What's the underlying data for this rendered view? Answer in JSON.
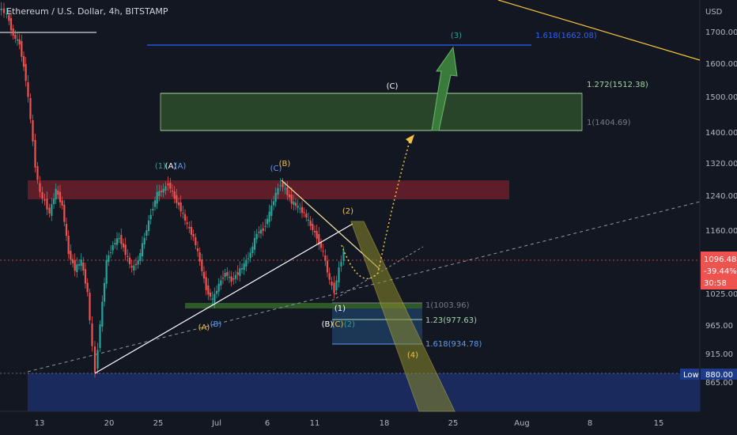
{
  "chart_data": {
    "type": "candlestick",
    "title": "Ethereum / U.S. Dollar, 4h, BITSTAMP",
    "currency_label": "USD",
    "y_axis_ticks": [
      "1700.00",
      "1600.00",
      "1500.00",
      "1400.00",
      "1320.00",
      "1240.00",
      "1160.00",
      "1025.00",
      "965.00",
      "915.00",
      "865.00"
    ],
    "x_axis_ticks": [
      "13",
      "20",
      "25",
      "Jul",
      "6",
      "11",
      "18",
      "25",
      "Aug",
      "8",
      "15"
    ],
    "current_price": {
      "value": "1096.48",
      "change": "-39.44%",
      "countdown": "30:58"
    },
    "low_marker": {
      "label": "Low",
      "value": "880.00"
    },
    "fib_levels": [
      {
        "label": "1.618(1662.08)",
        "color": "#2962ff"
      },
      {
        "label": "1.272(1512.38)",
        "color": "#a5d6a7"
      },
      {
        "label": "1(1404.69)",
        "color": "#787b86"
      },
      {
        "label": "1(1003.96)",
        "color": "#787b86"
      },
      {
        "label": "1.23(977.63)",
        "color": "#a5d6a7"
      },
      {
        "label": "1.618(934.78)",
        "color": "#5b9cf6"
      }
    ],
    "wave_labels": [
      {
        "text": "(3)",
        "color": "#26a69a"
      },
      {
        "text": "(C)",
        "color": "#ffffff"
      },
      {
        "text": "(1)",
        "color": "#26a69a"
      },
      {
        "text": "(A)",
        "color": "#ffffff"
      },
      {
        "text": "(A)",
        "color": "#5b9cf6"
      },
      {
        "text": "(C)",
        "color": "#5b9cf6"
      },
      {
        "text": "(B)",
        "color": "#f5c242"
      },
      {
        "text": "(2)",
        "color": "#f5c242"
      },
      {
        "text": "(A)",
        "color": "#f5c242"
      },
      {
        "text": "(B)",
        "color": "#5b9cf6"
      },
      {
        "text": "(1)",
        "color": "#ffffff"
      },
      {
        "text": "(B)",
        "color": "#ffffff"
      },
      {
        "text": "(C)",
        "color": "#f5c242"
      },
      {
        "text": "(2)",
        "color": "#26a69a"
      },
      {
        "text": "(4)",
        "color": "#f5c242"
      }
    ],
    "colors": {
      "up": "#26a69a",
      "down": "#ef5350",
      "background": "#131722"
    }
  }
}
